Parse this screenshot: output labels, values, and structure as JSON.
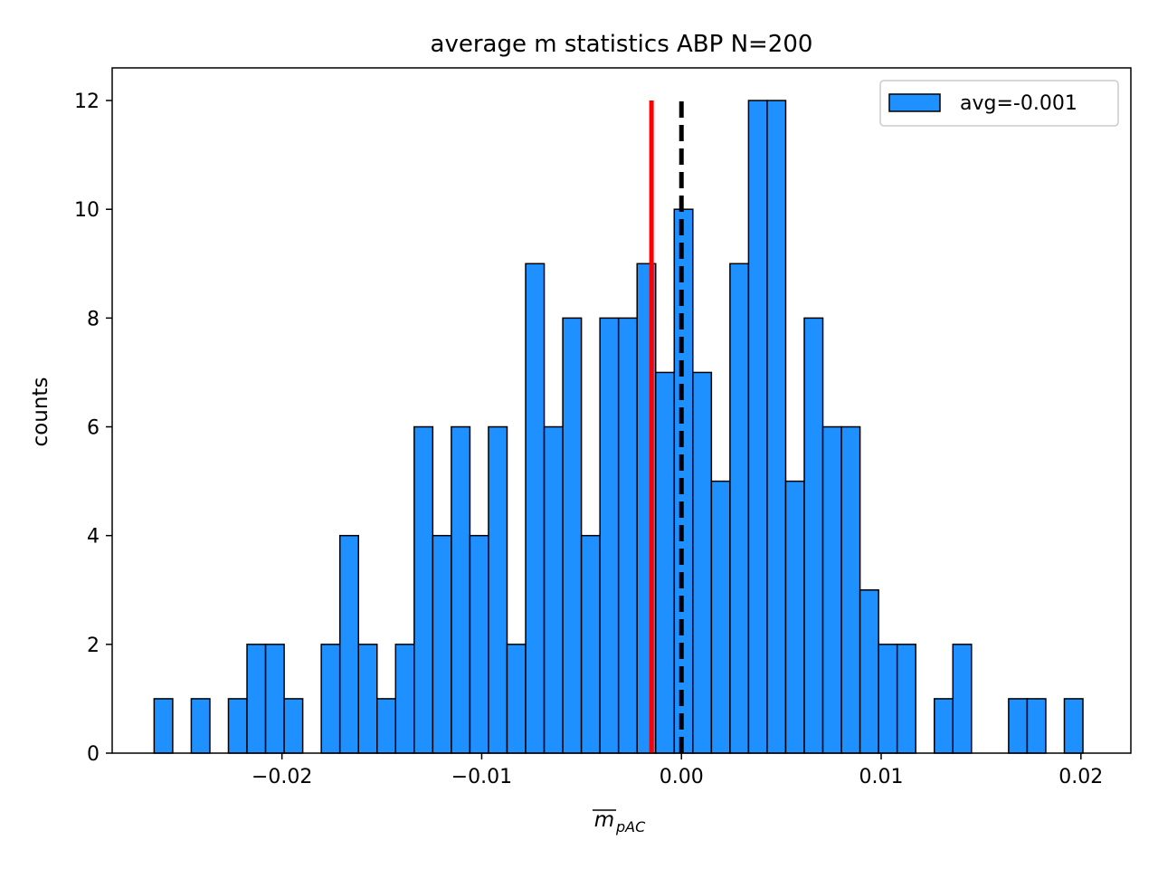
{
  "chart_data": {
    "type": "bar",
    "title": "average m statistics ABP N=200",
    "xlabel": "m",
    "xlabel_subscript": "pAC",
    "ylabel": "counts",
    "xlim": [
      -0.0285,
      0.0225
    ],
    "ylim": [
      0,
      12.6
    ],
    "x_ticks": [
      -0.02,
      -0.01,
      0.0,
      0.01,
      0.02
    ],
    "x_tick_labels": [
      "−0.02",
      "−0.01",
      "0.00",
      "0.01",
      "0.02"
    ],
    "y_ticks": [
      0,
      2,
      4,
      6,
      8,
      10,
      12
    ],
    "y_tick_labels": [
      "0",
      "2",
      "4",
      "6",
      "8",
      "10",
      "12"
    ],
    "grid": false,
    "legend_position": "top-right",
    "bins": {
      "start": -0.0264,
      "width": 0.00093,
      "counts": [
        1,
        0,
        1,
        0,
        1,
        2,
        2,
        1,
        0,
        2,
        4,
        2,
        1,
        2,
        6,
        4,
        6,
        4,
        6,
        2,
        9,
        6,
        8,
        4,
        8,
        8,
        9,
        7,
        10,
        7,
        5,
        9,
        12,
        12,
        5,
        8,
        6,
        6,
        3,
        2,
        2,
        0,
        1,
        2,
        0,
        0,
        1,
        1,
        0,
        1
      ]
    },
    "series": [
      {
        "name": "avg=-0.001",
        "color": "#1e90ff",
        "edge_color": "#000000"
      }
    ],
    "reference_lines": [
      {
        "x": -0.0015,
        "ymax": 12,
        "color": "#ff0000",
        "style": "solid"
      },
      {
        "x": 0.0,
        "ymax": 12,
        "color": "#000000",
        "style": "dashed"
      }
    ]
  }
}
